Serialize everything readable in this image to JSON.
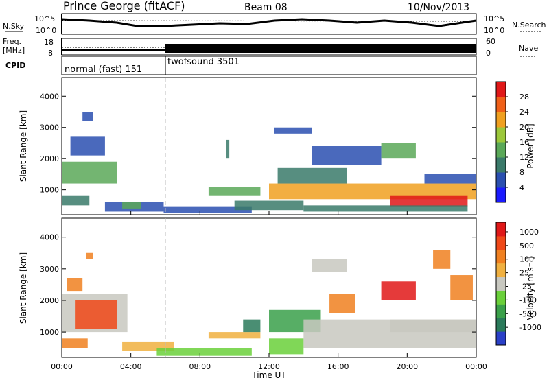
{
  "header": {
    "station": "Prince George (fitACF)",
    "beam": "Beam 08",
    "date": "10/Nov/2013"
  },
  "top_panels": {
    "nsky_label": "N.Sky",
    "nsky_ticks": [
      "10^5",
      "10^0"
    ],
    "nsearch_label": "N.Search",
    "freq_label_1": "Freq.",
    "freq_label_2": "[MHz]",
    "freq_ticks": [
      "18",
      "8"
    ],
    "nave_ticks": [
      "60",
      "0"
    ],
    "nave_label": "Nave",
    "cpid_label": "CPID",
    "cpid_modes": [
      "normal (fast) 151",
      "twofsound 3501"
    ]
  },
  "chart_data": [
    {
      "type": "heatmap",
      "name_hint": "power",
      "ylabel": "Slant Range [km]",
      "xlabel": "",
      "y_ticks": [
        "1000",
        "2000",
        "3000",
        "4000"
      ],
      "ylim": [
        200,
        4600
      ],
      "x_ticks": [
        "00:00",
        "04:00",
        "08:00",
        "12:00",
        "16:00",
        "20:00",
        "00:00"
      ],
      "xlim": [
        0,
        24
      ],
      "colorbar": {
        "label": "Power [dB]",
        "ticks": [
          "4",
          "8",
          "12",
          "16",
          "20",
          "24",
          "28"
        ],
        "colors": [
          "#1a1aff",
          "#2a4fb0",
          "#3a7a6a",
          "#5aa858",
          "#9cc83a",
          "#f0a020",
          "#f06018",
          "#e01818"
        ]
      },
      "regions": [
        {
          "t0": 0.0,
          "t1": 1.6,
          "r0": 500,
          "r1": 800,
          "level": 2
        },
        {
          "t0": 0.0,
          "t1": 3.2,
          "r0": 1200,
          "r1": 1900,
          "level": 3
        },
        {
          "t0": 0.5,
          "t1": 2.5,
          "r0": 2100,
          "r1": 2700,
          "level": 1
        },
        {
          "t0": 1.2,
          "t1": 1.8,
          "r0": 3200,
          "r1": 3500,
          "level": 1
        },
        {
          "t0": 2.5,
          "t1": 5.9,
          "r0": 300,
          "r1": 600,
          "level": 1
        },
        {
          "t0": 3.5,
          "t1": 4.6,
          "r0": 400,
          "r1": 600,
          "level": 3
        },
        {
          "t0": 5.9,
          "t1": 11.0,
          "r0": 250,
          "r1": 450,
          "level": 1
        },
        {
          "t0": 8.5,
          "t1": 11.5,
          "r0": 800,
          "r1": 1100,
          "level": 3
        },
        {
          "t0": 10.0,
          "t1": 14.0,
          "r0": 350,
          "r1": 650,
          "level": 2
        },
        {
          "t0": 12.0,
          "t1": 24.0,
          "r0": 700,
          "r1": 1200,
          "level": 5
        },
        {
          "t0": 19.0,
          "t1": 23.5,
          "r0": 450,
          "r1": 800,
          "level": 7
        },
        {
          "t0": 14.0,
          "t1": 23.5,
          "r0": 300,
          "r1": 500,
          "level": 2
        },
        {
          "t0": 12.5,
          "t1": 16.5,
          "r0": 1200,
          "r1": 1700,
          "level": 2
        },
        {
          "t0": 14.5,
          "t1": 18.5,
          "r0": 1800,
          "r1": 2400,
          "level": 1
        },
        {
          "t0": 18.5,
          "t1": 20.5,
          "r0": 2000,
          "r1": 2500,
          "level": 3
        },
        {
          "t0": 12.3,
          "t1": 14.5,
          "r0": 2800,
          "r1": 3000,
          "level": 1
        },
        {
          "t0": 9.5,
          "t1": 9.7,
          "r0": 2000,
          "r1": 2600,
          "level": 2
        },
        {
          "t0": 21.0,
          "t1": 24.0,
          "r0": 1200,
          "r1": 1500,
          "level": 1
        }
      ]
    },
    {
      "type": "heatmap",
      "name_hint": "velocity",
      "ylabel": "Slant Range [km]",
      "xlabel": "Time UT",
      "y_ticks": [
        "1000",
        "2000",
        "3000",
        "4000"
      ],
      "ylim": [
        200,
        4600
      ],
      "x_ticks": [
        "00:00",
        "04:00",
        "08:00",
        "12:00",
        "16:00",
        "20:00",
        "00:00"
      ],
      "xlim": [
        0,
        24
      ],
      "colorbar": {
        "label": "Velocity [m s⁻¹]",
        "ticks": [
          "1000",
          "500",
          "100",
          "25",
          "-25",
          "-100",
          "-500",
          "-1000"
        ],
        "colors": [
          "#2a40c8",
          "#2a7a5a",
          "#3aa04a",
          "#6ad03a",
          "#c8c8c0",
          "#f0b040",
          "#f08020",
          "#f04818",
          "#e01818"
        ]
      },
      "regions": [
        {
          "t0": 0.0,
          "t1": 3.8,
          "r0": 1000,
          "r1": 2200,
          "level": 4
        },
        {
          "t0": 0.8,
          "t1": 3.2,
          "r0": 1100,
          "r1": 2000,
          "level": 7
        },
        {
          "t0": 0.0,
          "t1": 1.5,
          "r0": 500,
          "r1": 800,
          "level": 6
        },
        {
          "t0": 0.3,
          "t1": 1.2,
          "r0": 2300,
          "r1": 2700,
          "level": 6
        },
        {
          "t0": 1.4,
          "t1": 1.8,
          "r0": 3300,
          "r1": 3500,
          "level": 6
        },
        {
          "t0": 3.5,
          "t1": 6.5,
          "r0": 400,
          "r1": 700,
          "level": 5
        },
        {
          "t0": 5.5,
          "t1": 11.0,
          "r0": 250,
          "r1": 500,
          "level": 3
        },
        {
          "t0": 8.5,
          "t1": 11.5,
          "r0": 800,
          "r1": 1000,
          "level": 5
        },
        {
          "t0": 10.5,
          "t1": 11.5,
          "r0": 1000,
          "r1": 1400,
          "level": 1
        },
        {
          "t0": 12.0,
          "t1": 15.0,
          "r0": 1000,
          "r1": 1700,
          "level": 2
        },
        {
          "t0": 14.0,
          "t1": 24.0,
          "r0": 500,
          "r1": 1400,
          "level": 4
        },
        {
          "t0": 12.0,
          "t1": 14.0,
          "r0": 300,
          "r1": 800,
          "level": 3
        },
        {
          "t0": 15.5,
          "t1": 17.0,
          "r0": 1600,
          "r1": 2200,
          "level": 6
        },
        {
          "t0": 18.5,
          "t1": 20.5,
          "r0": 2000,
          "r1": 2600,
          "level": 8
        },
        {
          "t0": 14.5,
          "t1": 16.5,
          "r0": 2900,
          "r1": 3300,
          "level": 4
        },
        {
          "t0": 19.0,
          "t1": 24.0,
          "r0": 1000,
          "r1": 1400,
          "level": 4
        },
        {
          "t0": 22.5,
          "t1": 23.8,
          "r0": 2000,
          "r1": 2800,
          "level": 6
        },
        {
          "t0": 21.5,
          "t1": 22.5,
          "r0": 3000,
          "r1": 3600,
          "level": 6
        }
      ]
    }
  ]
}
